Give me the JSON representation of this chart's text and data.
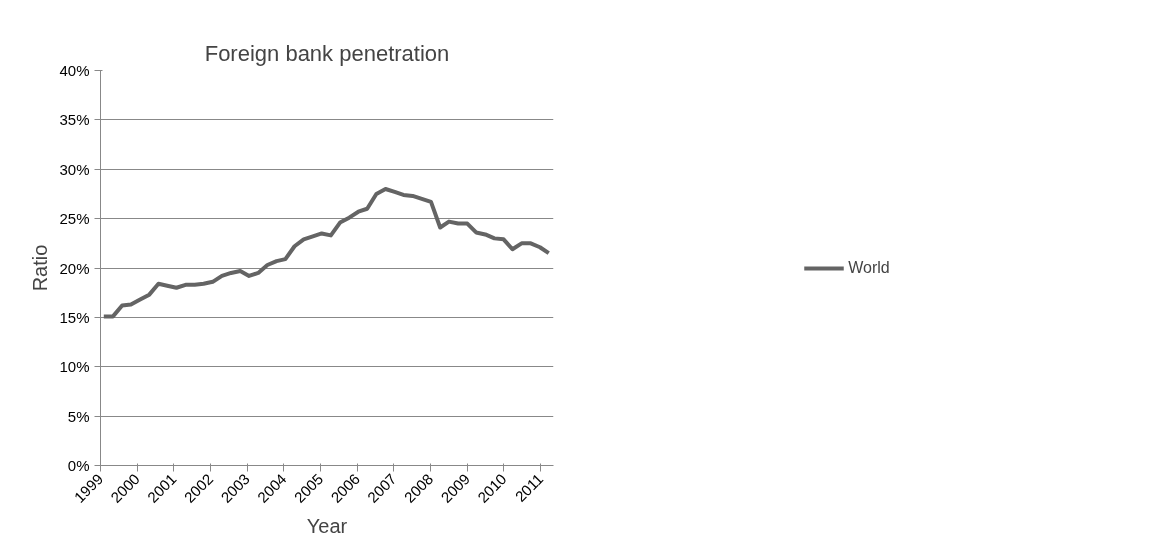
{
  "chart_data": {
    "type": "line",
    "title": "Foreign bank penetration",
    "xlabel": "Year",
    "ylabel": "Ratio",
    "xlim": [
      1999,
      2011.35
    ],
    "xticks": [
      1999,
      2000,
      2001,
      2002,
      2003,
      2004,
      2005,
      2006,
      2007,
      2008,
      2009,
      2010,
      2011
    ],
    "ylim": [
      0,
      40
    ],
    "yticks": [
      {
        "value": 0,
        "label": "0%"
      },
      {
        "value": 5,
        "label": "5%"
      },
      {
        "value": 10,
        "label": "10%"
      },
      {
        "value": 15,
        "label": "15%"
      },
      {
        "value": 20,
        "label": "20%"
      },
      {
        "value": 25,
        "label": "25%"
      },
      {
        "value": 30,
        "label": "30%"
      },
      {
        "value": 35,
        "label": "35%"
      },
      {
        "value": 40,
        "label": "40%"
      }
    ],
    "grid": "y",
    "legend": "right",
    "marker": "none",
    "line_style": "solid",
    "series": [
      {
        "name": "World",
        "color": "#646464",
        "x": [
          1999.09,
          1999.34,
          1999.59,
          1999.83,
          2000.08,
          2000.33,
          2000.58,
          2000.82,
          2001.07,
          2001.32,
          2001.57,
          2001.81,
          2002.06,
          2002.31,
          2002.56,
          2002.81,
          2003.05,
          2003.3,
          2003.55,
          2003.8,
          2004.04,
          2004.29,
          2004.54,
          2004.79,
          2005.03,
          2005.28,
          2005.53,
          2005.78,
          2006.03,
          2006.27,
          2006.52,
          2006.77,
          2007.02,
          2007.26,
          2007.51,
          2007.76,
          2008.01,
          2008.26,
          2008.5,
          2008.75,
          2009.0,
          2009.24,
          2009.49,
          2009.74,
          2009.99,
          2010.23,
          2010.48,
          2010.73,
          2010.98,
          2011.22
        ],
        "values": [
          15.1,
          15.1,
          16.2,
          16.3,
          16.8,
          17.3,
          18.4,
          18.2,
          18.0,
          18.3,
          18.3,
          18.4,
          18.6,
          19.2,
          19.5,
          19.7,
          19.2,
          19.5,
          20.3,
          20.7,
          20.9,
          22.2,
          22.9,
          23.2,
          23.5,
          23.3,
          24.6,
          25.1,
          25.7,
          26.0,
          27.5,
          28.0,
          27.7,
          27.4,
          27.3,
          27.0,
          26.7,
          24.1,
          24.7,
          24.5,
          24.5,
          23.6,
          23.4,
          23.0,
          22.9,
          21.9,
          22.5,
          22.5,
          22.1,
          21.5
        ]
      }
    ]
  }
}
